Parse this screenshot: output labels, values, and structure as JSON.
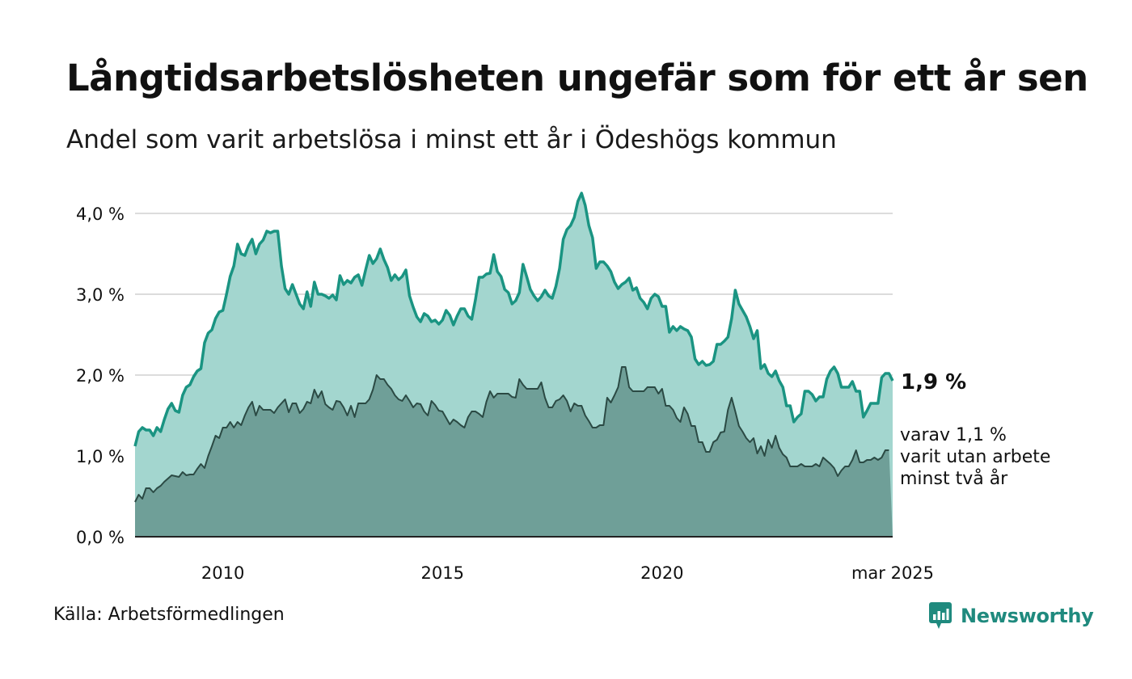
{
  "title": "Långtidsarbetslösheten ungefär som för ett år sen",
  "subtitle": "Andel som varit arbetslösa i minst ett år i Ödeshögs kommun",
  "source": "Källa: Arbetsförmedlingen",
  "brand": "Newsworthy",
  "colors": {
    "primary_line": "#1a9482",
    "primary_fill": "#a3d6cf",
    "secondary_line": "#2b4a44",
    "secondary_fill": "#6f9f98",
    "grid": "#dcdcdc",
    "brand": "#1f8a7e"
  },
  "chart_data": {
    "type": "area",
    "x_start": "jan 2008",
    "x_end": "mar 2025",
    "frequency": "monthly",
    "ylim": [
      0,
      4.0
    ],
    "y_ticks": [
      "0,0 %",
      "1,0 %",
      "2,0 %",
      "3,0 %",
      "4,0 %"
    ],
    "y_tick_values": [
      0,
      1,
      2,
      3,
      4
    ],
    "x_ticks": [
      "2010",
      "2015",
      "2020",
      "mar 2025"
    ],
    "grid": "horizontal",
    "end_labels": {
      "primary": "1,9 %",
      "secondary_lines": [
        "varav 1,1 %",
        "varit utan arbete",
        "minst två år"
      ]
    },
    "series": [
      {
        "values": [
          1.12,
          1.3,
          1.35,
          1.32,
          1.32,
          1.25,
          1.35,
          1.3,
          1.45,
          1.58,
          1.65,
          1.56,
          1.54,
          1.75,
          1.85,
          1.88,
          1.98,
          2.05,
          2.08,
          2.4,
          2.52,
          2.56,
          2.7,
          2.78,
          2.8,
          3.0,
          3.22,
          3.35,
          3.62,
          3.5,
          3.48,
          3.6,
          3.68,
          3.5,
          3.62,
          3.67,
          3.78,
          3.76,
          3.78,
          3.78,
          3.35,
          3.07,
          3.0,
          3.12,
          3.0,
          2.88,
          2.82,
          3.03,
          2.85,
          3.15,
          3.0,
          3.0,
          2.98,
          2.95,
          2.99,
          2.93,
          3.23,
          3.12,
          3.17,
          3.14,
          3.21,
          3.24,
          3.11,
          3.3,
          3.48,
          3.38,
          3.44,
          3.56,
          3.43,
          3.33,
          3.17,
          3.24,
          3.18,
          3.22,
          3.3,
          2.98,
          2.84,
          2.72,
          2.66,
          2.76,
          2.73,
          2.66,
          2.68,
          2.63,
          2.68,
          2.8,
          2.74,
          2.62,
          2.73,
          2.82,
          2.82,
          2.73,
          2.69,
          2.93,
          3.21,
          3.21,
          3.25,
          3.26,
          3.49,
          3.28,
          3.22,
          3.06,
          3.02,
          2.88,
          2.92,
          3.02,
          3.37,
          3.22,
          3.06,
          2.98,
          2.92,
          2.97,
          3.05,
          2.98,
          2.95,
          3.1,
          3.32,
          3.68,
          3.8,
          3.85,
          3.95,
          4.15,
          4.25,
          4.1,
          3.85,
          3.7,
          3.32,
          3.4,
          3.4,
          3.35,
          3.28,
          3.15,
          3.07,
          3.12,
          3.15,
          3.2,
          3.05,
          3.08,
          2.95,
          2.9,
          2.82,
          2.95,
          3.0,
          2.97,
          2.85,
          2.85,
          2.53,
          2.6,
          2.55,
          2.6,
          2.57,
          2.55,
          2.47,
          2.2,
          2.13,
          2.17,
          2.12,
          2.13,
          2.17,
          2.38,
          2.38,
          2.42,
          2.47,
          2.7,
          3.05,
          2.88,
          2.8,
          2.72,
          2.6,
          2.45,
          2.55,
          2.08,
          2.13,
          2.02,
          1.98,
          2.05,
          1.93,
          1.85,
          1.62,
          1.62,
          1.42,
          1.48,
          1.52,
          1.8,
          1.8,
          1.76,
          1.68,
          1.73,
          1.73,
          1.95,
          2.05,
          2.1,
          2.02,
          1.85,
          1.85,
          1.85,
          1.92,
          1.8,
          1.8,
          1.48,
          1.56,
          1.65,
          1.65,
          1.65,
          1.97,
          2.02,
          2.02,
          1.93
        ]
      },
      {
        "values": [
          0.43,
          0.52,
          0.47,
          0.6,
          0.6,
          0.55,
          0.6,
          0.63,
          0.68,
          0.72,
          0.76,
          0.75,
          0.74,
          0.8,
          0.76,
          0.77,
          0.77,
          0.84,
          0.9,
          0.85,
          1.0,
          1.12,
          1.25,
          1.22,
          1.35,
          1.35,
          1.42,
          1.35,
          1.42,
          1.38,
          1.5,
          1.6,
          1.67,
          1.5,
          1.62,
          1.57,
          1.57,
          1.57,
          1.53,
          1.6,
          1.65,
          1.7,
          1.54,
          1.65,
          1.65,
          1.53,
          1.58,
          1.67,
          1.65,
          1.82,
          1.72,
          1.8,
          1.64,
          1.6,
          1.57,
          1.68,
          1.67,
          1.6,
          1.5,
          1.62,
          1.48,
          1.65,
          1.65,
          1.65,
          1.7,
          1.82,
          2.0,
          1.95,
          1.95,
          1.88,
          1.83,
          1.75,
          1.7,
          1.68,
          1.75,
          1.68,
          1.6,
          1.65,
          1.64,
          1.55,
          1.5,
          1.68,
          1.63,
          1.56,
          1.55,
          1.47,
          1.39,
          1.45,
          1.42,
          1.38,
          1.35,
          1.48,
          1.55,
          1.55,
          1.52,
          1.48,
          1.67,
          1.8,
          1.72,
          1.77,
          1.77,
          1.77,
          1.77,
          1.73,
          1.72,
          1.95,
          1.88,
          1.83,
          1.83,
          1.83,
          1.83,
          1.91,
          1.72,
          1.6,
          1.6,
          1.68,
          1.7,
          1.75,
          1.68,
          1.55,
          1.65,
          1.62,
          1.62,
          1.5,
          1.43,
          1.35,
          1.35,
          1.38,
          1.38,
          1.72,
          1.66,
          1.75,
          1.85,
          2.1,
          2.1,
          1.85,
          1.8,
          1.8,
          1.8,
          1.8,
          1.85,
          1.85,
          1.85,
          1.77,
          1.83,
          1.62,
          1.62,
          1.57,
          1.47,
          1.42,
          1.6,
          1.52,
          1.37,
          1.37,
          1.17,
          1.17,
          1.05,
          1.05,
          1.17,
          1.2,
          1.29,
          1.3,
          1.57,
          1.72,
          1.55,
          1.37,
          1.3,
          1.22,
          1.17,
          1.22,
          1.03,
          1.12,
          1.0,
          1.2,
          1.1,
          1.25,
          1.1,
          1.02,
          0.98,
          0.87,
          0.87,
          0.87,
          0.9,
          0.87,
          0.87,
          0.87,
          0.9,
          0.87,
          0.98,
          0.94,
          0.9,
          0.85,
          0.75,
          0.82,
          0.87,
          0.87,
          0.95,
          1.07,
          0.92,
          0.92,
          0.95,
          0.95,
          0.98,
          0.95,
          0.98,
          1.07,
          1.07
        ]
      }
    ]
  }
}
